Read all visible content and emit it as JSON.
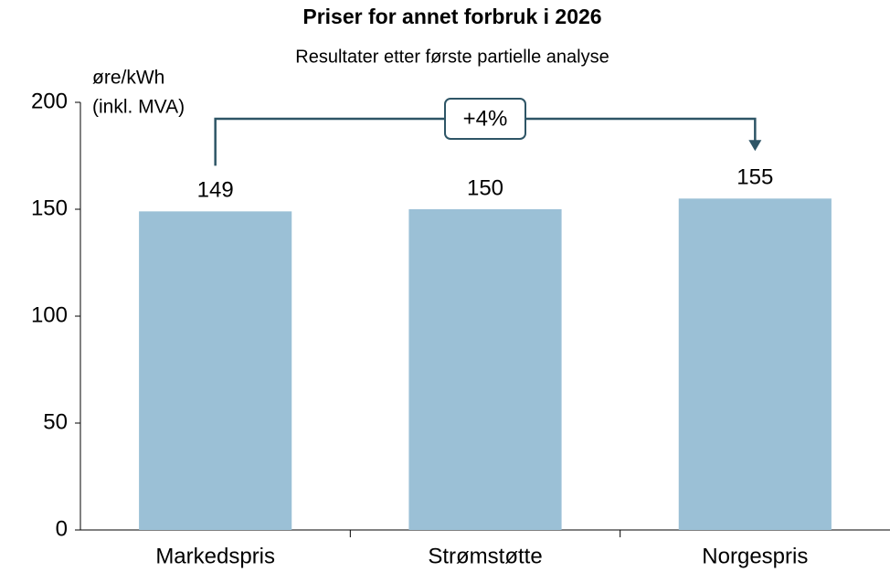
{
  "chart_data": {
    "type": "bar",
    "title": "Priser for annet forbruk i 2026",
    "subtitle": "Resultater etter første partielle analyse",
    "y_label": [
      "øre/kWh",
      "(inkl. MVA)"
    ],
    "categories": [
      "Markedspris",
      "Strømstøtte",
      "Norgespris"
    ],
    "values": [
      149,
      150,
      155
    ],
    "color": "#9bc0d6",
    "ylim": [
      0,
      200
    ],
    "yticks": [
      0,
      50,
      100,
      150,
      200
    ],
    "grid": false,
    "annotation": "+4%"
  }
}
